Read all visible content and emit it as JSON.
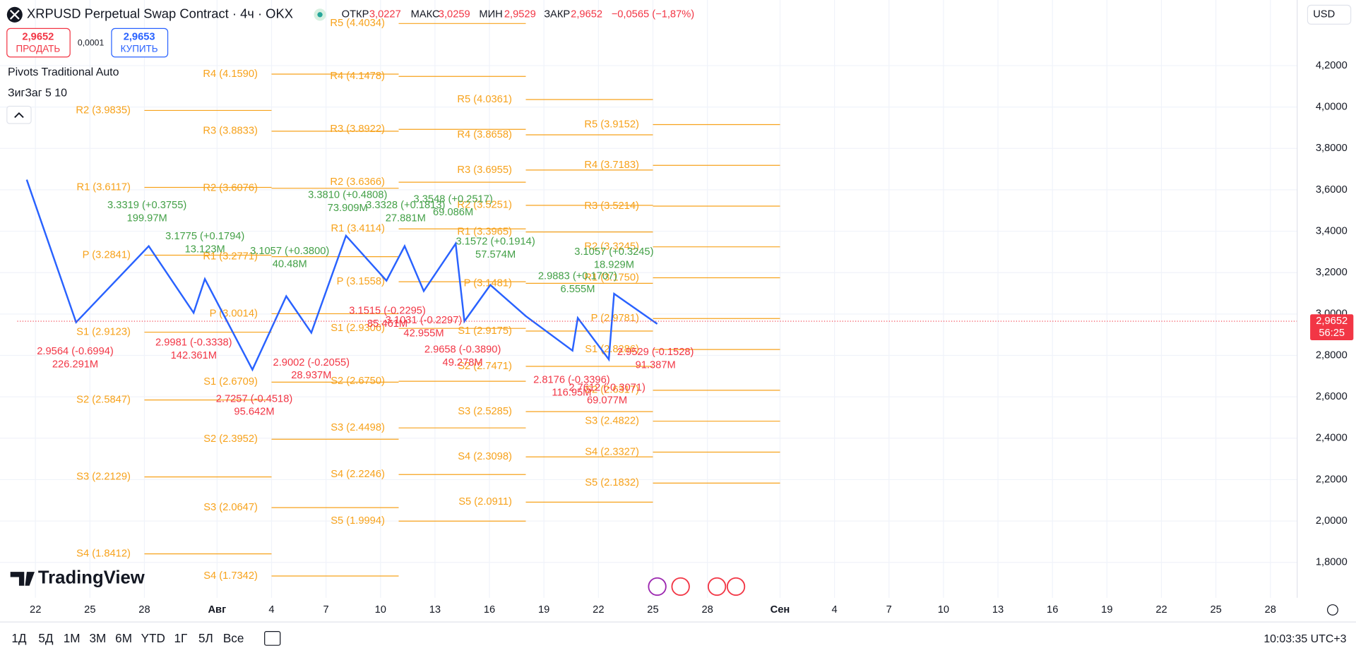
{
  "header": {
    "symbol": "XRPUSD Perpetual Swap Contract · 4ч · OKX",
    "ohlc": [
      {
        "label": "ОТКР",
        "value": "3,0227"
      },
      {
        "label": "МАКС",
        "value": "3,0259"
      },
      {
        "label": "МИН",
        "value": "2,9529"
      },
      {
        "label": "ЗАКР",
        "value": "2,9652"
      }
    ],
    "change": "−0,0565 (−1,87%)",
    "currency": "USD"
  },
  "trade": {
    "sell_price": "2,9652",
    "sell_label": "ПРОДАТЬ",
    "spread": "0,0001",
    "buy_price": "2,9653",
    "buy_label": "КУПИТЬ"
  },
  "indicators": [
    "Pivots Traditional Auto",
    "ЗигЗаг 5 10"
  ],
  "chart_data": {
    "type": "line",
    "xlim": [
      -1.952,
      69.476
    ],
    "xticks": [
      {
        "value": 0,
        "label": "22"
      },
      {
        "value": 3,
        "label": "25"
      },
      {
        "value": 6,
        "label": "28"
      },
      {
        "value": 10,
        "label": "Авг"
      },
      {
        "value": 13,
        "label": "4"
      },
      {
        "value": 16,
        "label": "7"
      },
      {
        "value": 19,
        "label": "10"
      },
      {
        "value": 22,
        "label": "13"
      },
      {
        "value": 25,
        "label": "16"
      },
      {
        "value": 28,
        "label": "19"
      },
      {
        "value": 31,
        "label": "22"
      },
      {
        "value": 34,
        "label": "25"
      },
      {
        "value": 37,
        "label": "28"
      },
      {
        "value": 41,
        "label": "Сен"
      },
      {
        "value": 44,
        "label": "4"
      },
      {
        "value": 47,
        "label": "7"
      },
      {
        "value": 50,
        "label": "10"
      },
      {
        "value": 53,
        "label": "13"
      },
      {
        "value": 56,
        "label": "16"
      },
      {
        "value": 59,
        "label": "19"
      },
      {
        "value": 62,
        "label": "22"
      },
      {
        "value": 65,
        "label": "25"
      },
      {
        "value": 68,
        "label": "28"
      }
    ],
    "ylim": [
      1.629,
      4.517
    ],
    "yticks": [
      {
        "value": 1.8,
        "label": "1,8000"
      },
      {
        "value": 2.0,
        "label": "2,0000"
      },
      {
        "value": 2.2,
        "label": "2,2000"
      },
      {
        "value": 2.4,
        "label": "2,4000"
      },
      {
        "value": 2.6,
        "label": "2,6000"
      },
      {
        "value": 2.8,
        "label": "2,8000"
      },
      {
        "value": 3.0,
        "label": "3,0000"
      },
      {
        "value": 3.2,
        "label": "3,2000"
      },
      {
        "value": 3.4,
        "label": "3,4000"
      },
      {
        "value": 3.6,
        "label": "3,6000"
      },
      {
        "value": 3.8,
        "label": "3,8000"
      },
      {
        "value": 4.0,
        "label": "4,0000"
      },
      {
        "value": 4.2,
        "label": "4,2000"
      }
    ],
    "zigzag": {
      "color": "#2962ff",
      "x": [
        -0.48,
        2.24,
        6.24,
        8.71,
        9.33,
        11.95,
        13.81,
        15.19,
        17.1,
        19.33,
        20.33,
        21.38,
        23.14,
        23.62,
        25.05,
        27,
        29.57,
        29.86,
        31.57,
        31.86,
        34.24
      ],
      "values": [
        3.649,
        2.96,
        3.328,
        3.006,
        3.169,
        2.731,
        3.086,
        2.91,
        3.378,
        3.161,
        3.328,
        3.111,
        3.34,
        2.965,
        3.14,
        2.99,
        2.823,
        2.981,
        2.781,
        3.098,
        2.952
      ]
    },
    "pivot_color": "#f7a21b",
    "pivots": [
      {
        "x_range": [
          6,
          13
        ],
        "levels": [
          {
            "value": 3.9835,
            "label": "R2 (3.9835)"
          },
          {
            "value": 3.6117,
            "label": "R1 (3.6117)"
          },
          {
            "value": 3.2841,
            "label": "P (3.2841)"
          },
          {
            "value": 2.9123,
            "label": "S1 (2.9123)"
          },
          {
            "value": 2.5847,
            "label": "S2 (2.5847)"
          },
          {
            "value": 2.2129,
            "label": "S3 (2.2129)"
          },
          {
            "value": 1.8412,
            "label": "S4 (1.8412)"
          }
        ]
      },
      {
        "x_range": [
          13,
          20
        ],
        "levels": [
          {
            "value": 4.159,
            "label": "R4 (4.1590)"
          },
          {
            "value": 3.8833,
            "label": "R3 (3.8833)"
          },
          {
            "value": 3.6076,
            "label": "R2 (3.6076)"
          },
          {
            "value": 3.2771,
            "label": "R1 (3.2771)"
          },
          {
            "value": 3.0014,
            "label": "P (3.0014)"
          },
          {
            "value": 2.6709,
            "label": "S1 (2.6709)"
          },
          {
            "value": 2.3952,
            "label": "S2 (2.3952)"
          },
          {
            "value": 2.0647,
            "label": "S3 (2.0647)"
          },
          {
            "value": 1.7342,
            "label": "S4 (1.7342)"
          }
        ]
      },
      {
        "x_range": [
          20,
          27
        ],
        "levels": [
          {
            "value": 4.4034,
            "label": "R5 (4.4034)"
          },
          {
            "value": 4.1478,
            "label": "R4 (4.1478)"
          },
          {
            "value": 3.8922,
            "label": "R3 (3.8922)"
          },
          {
            "value": 3.6366,
            "label": "R2 (3.6366)"
          },
          {
            "value": 3.4114,
            "label": "R1 (3.4114)"
          },
          {
            "value": 3.1558,
            "label": "P (3.1558)"
          },
          {
            "value": 2.9306,
            "label": "S1 (2.9306)"
          },
          {
            "value": 2.675,
            "label": "S2 (2.6750)"
          },
          {
            "value": 2.4498,
            "label": "S3 (2.4498)"
          },
          {
            "value": 2.2246,
            "label": "S4 (2.2246)"
          },
          {
            "value": 1.9994,
            "label": "S5 (1.9994)"
          }
        ]
      },
      {
        "x_range": [
          27,
          34
        ],
        "levels": [
          {
            "value": 4.0361,
            "label": "R5 (4.0361)"
          },
          {
            "value": 3.8658,
            "label": "R4 (3.8658)"
          },
          {
            "value": 3.6955,
            "label": "R3 (3.6955)"
          },
          {
            "value": 3.5251,
            "label": "R2 (3.5251)"
          },
          {
            "value": 3.3965,
            "label": "R1 (3.3965)"
          },
          {
            "value": 3.1481,
            "label": "P (3.1481)"
          },
          {
            "value": 2.9175,
            "label": "S1 (2.9175)"
          },
          {
            "value": 2.7471,
            "label": "S2 (2.7471)"
          },
          {
            "value": 2.5285,
            "label": "S3 (2.5285)"
          },
          {
            "value": 2.3098,
            "label": "S4 (2.3098)"
          },
          {
            "value": 2.0911,
            "label": "S5 (2.0911)"
          }
        ]
      },
      {
        "x_range": [
          34,
          41
        ],
        "levels": [
          {
            "value": 3.9152,
            "label": "R5 (3.9152)"
          },
          {
            "value": 3.7183,
            "label": "R4 (3.7183)"
          },
          {
            "value": 3.5214,
            "label": "R3 (3.5214)"
          },
          {
            "value": 3.3245,
            "label": "R2 (3.3245)"
          },
          {
            "value": 3.175,
            "label": "R1 (3.1750)"
          },
          {
            "value": 2.9781,
            "label": "P (2.9781)"
          },
          {
            "value": 2.8286,
            "label": "S1 (2.8286)"
          },
          {
            "value": 2.6317,
            "label": "S2 (2.6317)"
          },
          {
            "value": 2.4822,
            "label": "S3 (2.4822)"
          },
          {
            "value": 2.3327,
            "label": "S4 (2.3327)"
          },
          {
            "value": 2.1832,
            "label": "S5 (2.1832)"
          }
        ]
      }
    ],
    "zigzag_labels": [
      {
        "price": "3.3319 (+0.3755)",
        "volume": "199.97M",
        "color": "#43a047"
      },
      {
        "price": "3.1775 (+0.1794)",
        "volume": "13.123M",
        "color": "#43a047"
      },
      {
        "price": "3.1057 (+0.3800)",
        "volume": "40.48M",
        "color": "#43a047"
      },
      {
        "price": "3.3810 (+0.4808)",
        "volume": "73.909M",
        "color": "#43a047"
      },
      {
        "price": "3.3328 (+0.1813)",
        "volume": "27.881M",
        "color": "#43a047"
      },
      {
        "price": "3.3548 (+0.2517)",
        "volume": "69.086M",
        "color": "#43a047"
      },
      {
        "price": "3.1572 (+0.1914)",
        "volume": "57.574M",
        "color": "#43a047"
      },
      {
        "price": "2.9883 (+0.1707)",
        "volume": "6.555M",
        "color": "#43a047"
      },
      {
        "price": "3.1057 (+0.3245)",
        "volume": "18.929M",
        "color": "#43a047"
      },
      {
        "price": "2.9564 (-0.6994)",
        "volume": "226.291M",
        "color": "#f23645"
      },
      {
        "price": "2.9981 (-0.3338)",
        "volume": "142.361M",
        "color": "#f23645"
      },
      {
        "price": "2.7257 (-0.4518)",
        "volume": "95.642M",
        "color": "#f23645"
      },
      {
        "price": "2.9002 (-0.2055)",
        "volume": "28.937M",
        "color": "#f23645"
      },
      {
        "price": "3.1515 (-0.2295)",
        "volume": "85.461M",
        "color": "#f23645"
      },
      {
        "price": "3.1031 (-0.2297)",
        "volume": "42.955M",
        "color": "#f23645"
      },
      {
        "price": "2.9658 (-0.3890)",
        "volume": "49.278M",
        "color": "#f23645"
      },
      {
        "price": "2.8176 (-0.3396)",
        "volume": "116.95M",
        "color": "#f23645"
      },
      {
        "price": "2.7612 (-0.3071)",
        "volume": "69.077M",
        "color": "#f23645"
      },
      {
        "price": "2.9529 (-0.1528)",
        "volume": "91.387M",
        "color": "#f23645"
      }
    ],
    "last_price": {
      "value": 2.9652,
      "label": "2,9652"
    },
    "countdown": "56:25"
  },
  "footer": {
    "logo": "TradingView",
    "ranges": [
      "1Д",
      "5Д",
      "1М",
      "3М",
      "6М",
      "YTD",
      "1Г",
      "5Л",
      "Все"
    ],
    "clock": "10:03:35 UTC+3"
  }
}
